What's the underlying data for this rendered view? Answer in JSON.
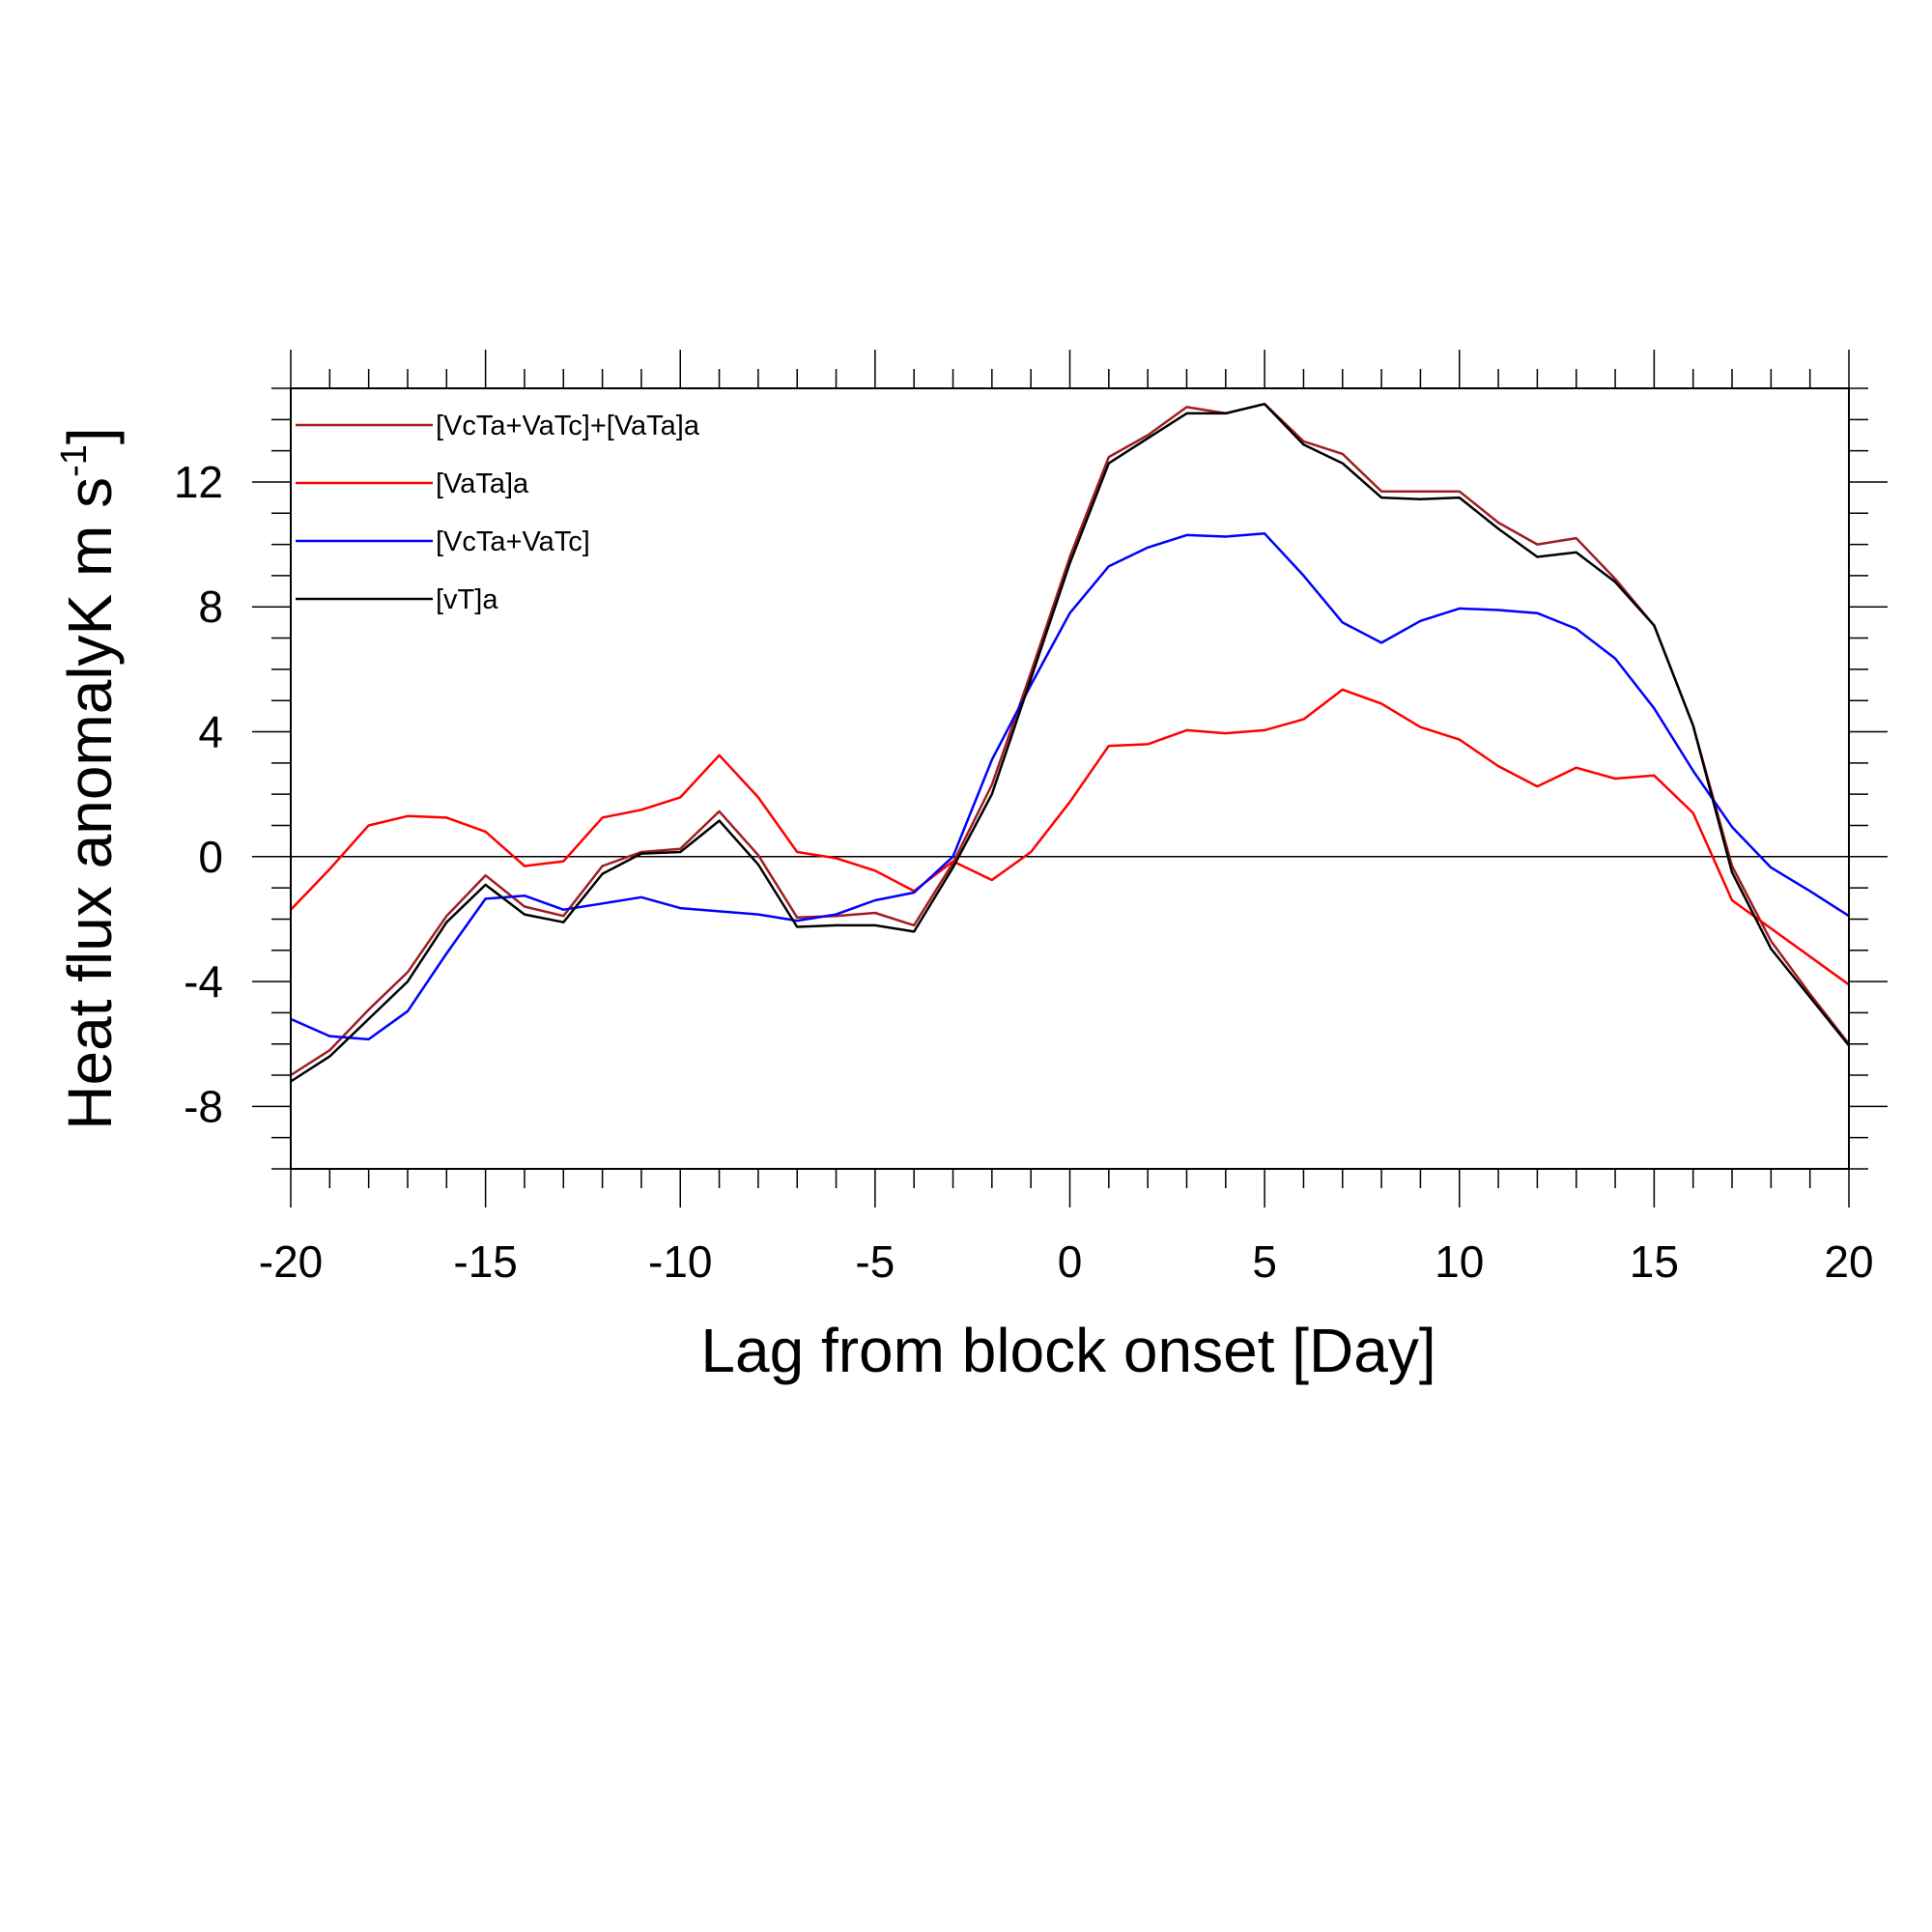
{
  "chart_data": {
    "type": "line",
    "title": "",
    "xlabel": "Lag from block onset [Day]",
    "ylabel_main": "Heat flux anomalyK m s",
    "ylabel_exp": "-1",
    "ylabel_close": "]",
    "xlim": [
      -20,
      20
    ],
    "ylim": [
      -10,
      15
    ],
    "xticks": [
      -20,
      -15,
      -10,
      -5,
      0,
      5,
      10,
      15,
      20
    ],
    "yticks": [
      -8,
      -4,
      0,
      4,
      8,
      12
    ],
    "xtick_labels": [
      "-20",
      "-15",
      "-10",
      "-5",
      "0",
      "5",
      "10",
      "15",
      "20"
    ],
    "ytick_labels": [
      "-8",
      "-4",
      "0",
      "4",
      "8",
      "12"
    ],
    "grid": false,
    "zero_line": true,
    "legend_position": "top-left",
    "x": [
      -20,
      -19,
      -18,
      -17,
      -16,
      -15,
      -14,
      -13,
      -12,
      -11,
      -10,
      -9,
      -8,
      -7,
      -6,
      -5,
      -4,
      -3,
      -2,
      -1,
      0,
      1,
      2,
      3,
      4,
      5,
      6,
      7,
      8,
      9,
      10,
      11,
      12,
      13,
      14,
      15,
      16,
      17,
      18,
      19,
      20
    ],
    "series": [
      {
        "name": "[VcTa+VaTc]+[VaTa]a",
        "color": "#a11d21",
        "values": [
          -7.0,
          -6.2,
          -4.9,
          -3.7,
          -1.9,
          -0.6,
          -1.6,
          -1.9,
          -0.3,
          0.15,
          0.25,
          1.45,
          0.05,
          -1.95,
          -1.9,
          -1.8,
          -2.2,
          -0.2,
          2.3,
          5.9,
          9.6,
          12.8,
          13.5,
          14.4,
          14.2,
          14.5,
          13.3,
          12.9,
          11.7,
          11.7,
          11.7,
          10.7,
          10.0,
          10.2,
          8.9,
          7.4,
          4.2,
          -0.3,
          -2.7,
          -4.4,
          -6.0
        ]
      },
      {
        "name": "[VaTa]a",
        "color": "#ff0000",
        "values": [
          -1.7,
          -0.4,
          1.0,
          1.3,
          1.25,
          0.8,
          -0.3,
          -0.15,
          1.25,
          1.5,
          1.9,
          3.25,
          1.9,
          0.15,
          -0.05,
          -0.45,
          -1.1,
          -0.15,
          -0.75,
          0.15,
          1.75,
          3.55,
          3.6,
          4.05,
          3.95,
          4.05,
          4.4,
          5.35,
          4.9,
          4.15,
          3.75,
          2.9,
          2.25,
          2.85,
          2.5,
          2.6,
          1.4,
          -1.4,
          -2.3,
          -3.2,
          -4.1
        ]
      },
      {
        "name": "[VcTa+VaTc]",
        "color": "#0000ff",
        "values": [
          -5.2,
          -5.75,
          -5.85,
          -4.95,
          -3.1,
          -1.35,
          -1.25,
          -1.7,
          -1.5,
          -1.3,
          -1.65,
          -1.75,
          -1.85,
          -2.05,
          -1.85,
          -1.4,
          -1.15,
          0.0,
          3.1,
          5.5,
          7.8,
          9.3,
          9.9,
          10.3,
          10.25,
          10.35,
          9.0,
          7.5,
          6.85,
          7.55,
          7.95,
          7.9,
          7.8,
          7.3,
          6.35,
          4.75,
          2.75,
          0.95,
          -0.35,
          -1.1,
          -1.9
        ]
      },
      {
        "name": "[vT]a",
        "color": "#000000",
        "values": [
          -7.2,
          -6.4,
          -5.2,
          -4.0,
          -2.1,
          -0.9,
          -1.85,
          -2.1,
          -0.55,
          0.1,
          0.15,
          1.15,
          -0.25,
          -2.25,
          -2.2,
          -2.2,
          -2.4,
          -0.35,
          2.0,
          5.7,
          9.4,
          12.6,
          13.4,
          14.2,
          14.2,
          14.5,
          13.2,
          12.6,
          11.5,
          11.45,
          11.5,
          10.5,
          9.6,
          9.75,
          8.8,
          7.4,
          4.2,
          -0.5,
          -2.95,
          -4.5,
          -6.05
        ]
      }
    ]
  }
}
